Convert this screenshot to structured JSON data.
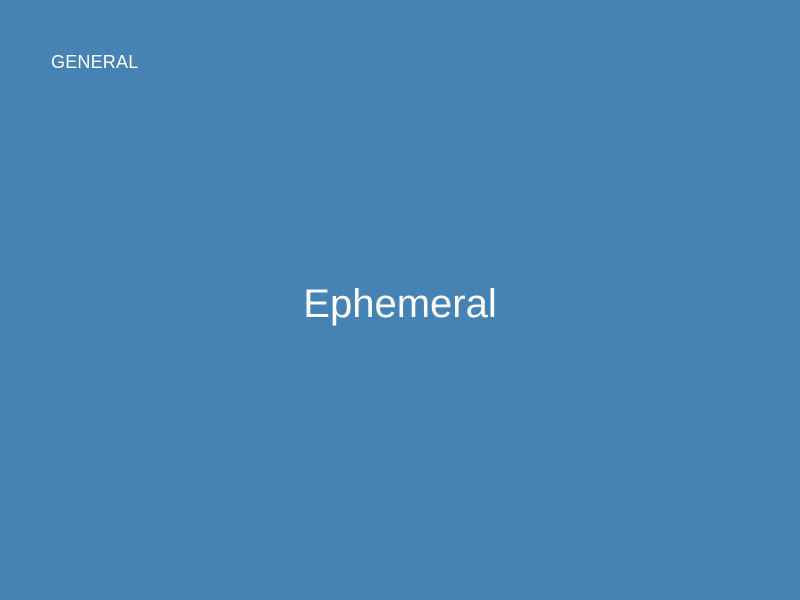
{
  "card": {
    "category": "GENERAL",
    "term": "Ephemeral"
  },
  "colors": {
    "background": "#4682b4",
    "text": "#ffffff"
  }
}
